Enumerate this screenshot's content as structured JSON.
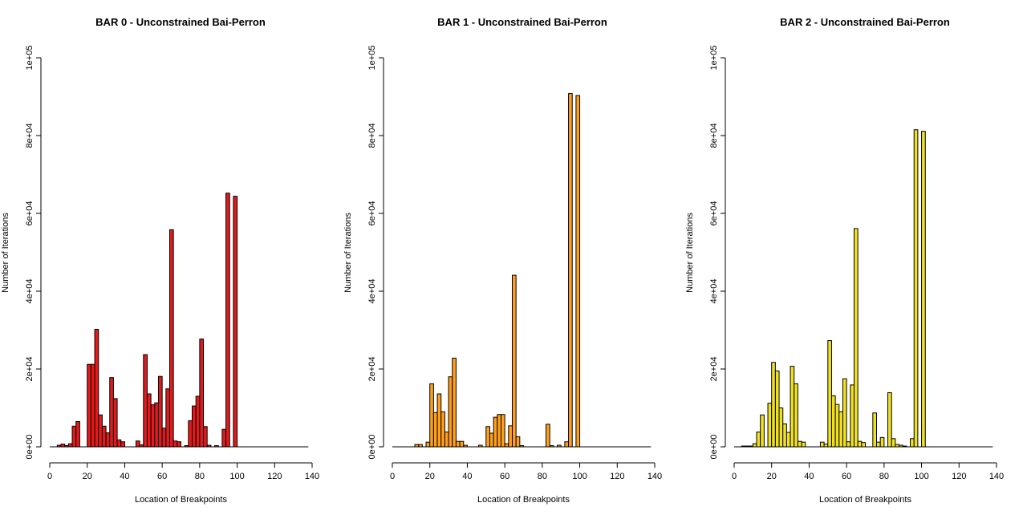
{
  "chart_data": [
    {
      "type": "bar",
      "title": "BAR 0 - Unconstrained Bai-Perron",
      "xlabel": "Location of Breakpoints",
      "ylabel": "Number of Iterations",
      "xlim": [
        0,
        140
      ],
      "ylim": [
        0,
        100000
      ],
      "x_ticks": [
        "0",
        "20",
        "40",
        "60",
        "80",
        "100",
        "120",
        "140"
      ],
      "y_ticks": [
        "0e+00",
        "2e+04",
        "4e+04",
        "6e+04",
        "8e+04",
        "1e+05"
      ],
      "color": "#e31a1c",
      "bin_width": 2,
      "bins": [
        {
          "x": 5,
          "value": 400
        },
        {
          "x": 7,
          "value": 700
        },
        {
          "x": 9,
          "value": 300
        },
        {
          "x": 11,
          "value": 800
        },
        {
          "x": 13,
          "value": 5300
        },
        {
          "x": 15,
          "value": 6500
        },
        {
          "x": 21,
          "value": 21200
        },
        {
          "x": 23,
          "value": 21200
        },
        {
          "x": 25,
          "value": 30200
        },
        {
          "x": 27,
          "value": 8200
        },
        {
          "x": 29,
          "value": 5300
        },
        {
          "x": 31,
          "value": 3600
        },
        {
          "x": 33,
          "value": 17800
        },
        {
          "x": 35,
          "value": 12400
        },
        {
          "x": 37,
          "value": 1800
        },
        {
          "x": 39,
          "value": 1300
        },
        {
          "x": 47,
          "value": 1500
        },
        {
          "x": 49,
          "value": 500
        },
        {
          "x": 51,
          "value": 23700
        },
        {
          "x": 53,
          "value": 13600
        },
        {
          "x": 55,
          "value": 10800
        },
        {
          "x": 57,
          "value": 11300
        },
        {
          "x": 59,
          "value": 18100
        },
        {
          "x": 61,
          "value": 4800
        },
        {
          "x": 63,
          "value": 14900
        },
        {
          "x": 65,
          "value": 55800
        },
        {
          "x": 67,
          "value": 1500
        },
        {
          "x": 69,
          "value": 1300
        },
        {
          "x": 73,
          "value": 300
        },
        {
          "x": 75,
          "value": 6700
        },
        {
          "x": 77,
          "value": 10500
        },
        {
          "x": 79,
          "value": 13000
        },
        {
          "x": 81,
          "value": 27700
        },
        {
          "x": 83,
          "value": 5200
        },
        {
          "x": 85,
          "value": 400
        },
        {
          "x": 89,
          "value": 300
        },
        {
          "x": 93,
          "value": 4500
        },
        {
          "x": 95,
          "value": 65200
        },
        {
          "x": 99,
          "value": 64400
        }
      ]
    },
    {
      "type": "bar",
      "title": "BAR 1 - Unconstrained Bai-Perron",
      "xlabel": "Location of Breakpoints",
      "ylabel": "Number of Iterations",
      "xlim": [
        0,
        140
      ],
      "ylim": [
        0,
        100000
      ],
      "x_ticks": [
        "0",
        "20",
        "40",
        "60",
        "80",
        "100",
        "120",
        "140"
      ],
      "y_ticks": [
        "0e+00",
        "2e+04",
        "4e+04",
        "6e+04",
        "8e+04",
        "1e+05"
      ],
      "color": "#ff9f1c",
      "bin_width": 2,
      "bins": [
        {
          "x": 13,
          "value": 600
        },
        {
          "x": 15,
          "value": 600
        },
        {
          "x": 19,
          "value": 1200
        },
        {
          "x": 21,
          "value": 16200
        },
        {
          "x": 23,
          "value": 8800
        },
        {
          "x": 25,
          "value": 13600
        },
        {
          "x": 27,
          "value": 9000
        },
        {
          "x": 29,
          "value": 3800
        },
        {
          "x": 31,
          "value": 18000
        },
        {
          "x": 33,
          "value": 22800
        },
        {
          "x": 35,
          "value": 1400
        },
        {
          "x": 37,
          "value": 1400
        },
        {
          "x": 39,
          "value": 400
        },
        {
          "x": 47,
          "value": 400
        },
        {
          "x": 51,
          "value": 5200
        },
        {
          "x": 53,
          "value": 3500
        },
        {
          "x": 55,
          "value": 7600
        },
        {
          "x": 57,
          "value": 8300
        },
        {
          "x": 59,
          "value": 8300
        },
        {
          "x": 61,
          "value": 800
        },
        {
          "x": 63,
          "value": 5400
        },
        {
          "x": 65,
          "value": 44100
        },
        {
          "x": 67,
          "value": 2600
        },
        {
          "x": 69,
          "value": 300
        },
        {
          "x": 83,
          "value": 5800
        },
        {
          "x": 85,
          "value": 300
        },
        {
          "x": 89,
          "value": 400
        },
        {
          "x": 93,
          "value": 1300
        },
        {
          "x": 95,
          "value": 90800
        },
        {
          "x": 99,
          "value": 90300
        }
      ]
    },
    {
      "type": "bar",
      "title": "BAR 2 - Unconstrained Bai-Perron",
      "xlabel": "Location of Breakpoints",
      "ylabel": "Number of Iterations",
      "xlim": [
        0,
        140
      ],
      "ylim": [
        0,
        100000
      ],
      "x_ticks": [
        "0",
        "20",
        "40",
        "60",
        "80",
        "100",
        "120",
        "140"
      ],
      "y_ticks": [
        "0e+00",
        "2e+04",
        "4e+04",
        "6e+04",
        "8e+04",
        "1e+05"
      ],
      "color": "#f0e024",
      "bin_width": 2,
      "bins": [
        {
          "x": 5,
          "value": 200
        },
        {
          "x": 7,
          "value": 200
        },
        {
          "x": 9,
          "value": 200
        },
        {
          "x": 11,
          "value": 800
        },
        {
          "x": 13,
          "value": 3800
        },
        {
          "x": 15,
          "value": 8200
        },
        {
          "x": 19,
          "value": 11200
        },
        {
          "x": 21,
          "value": 21700
        },
        {
          "x": 23,
          "value": 19500
        },
        {
          "x": 25,
          "value": 10000
        },
        {
          "x": 27,
          "value": 5900
        },
        {
          "x": 29,
          "value": 3700
        },
        {
          "x": 31,
          "value": 20700
        },
        {
          "x": 33,
          "value": 16200
        },
        {
          "x": 35,
          "value": 1400
        },
        {
          "x": 37,
          "value": 1200
        },
        {
          "x": 47,
          "value": 1200
        },
        {
          "x": 49,
          "value": 700
        },
        {
          "x": 51,
          "value": 27300
        },
        {
          "x": 53,
          "value": 13100
        },
        {
          "x": 55,
          "value": 10900
        },
        {
          "x": 57,
          "value": 9000
        },
        {
          "x": 59,
          "value": 17500
        },
        {
          "x": 61,
          "value": 1300
        },
        {
          "x": 63,
          "value": 15900
        },
        {
          "x": 65,
          "value": 56100
        },
        {
          "x": 67,
          "value": 1400
        },
        {
          "x": 69,
          "value": 1100
        },
        {
          "x": 75,
          "value": 8700
        },
        {
          "x": 77,
          "value": 1200
        },
        {
          "x": 79,
          "value": 2400
        },
        {
          "x": 83,
          "value": 13900
        },
        {
          "x": 85,
          "value": 2100
        },
        {
          "x": 87,
          "value": 600
        },
        {
          "x": 89,
          "value": 400
        },
        {
          "x": 91,
          "value": 200
        },
        {
          "x": 95,
          "value": 2100
        },
        {
          "x": 97,
          "value": 81500
        },
        {
          "x": 101,
          "value": 81100
        }
      ]
    }
  ]
}
